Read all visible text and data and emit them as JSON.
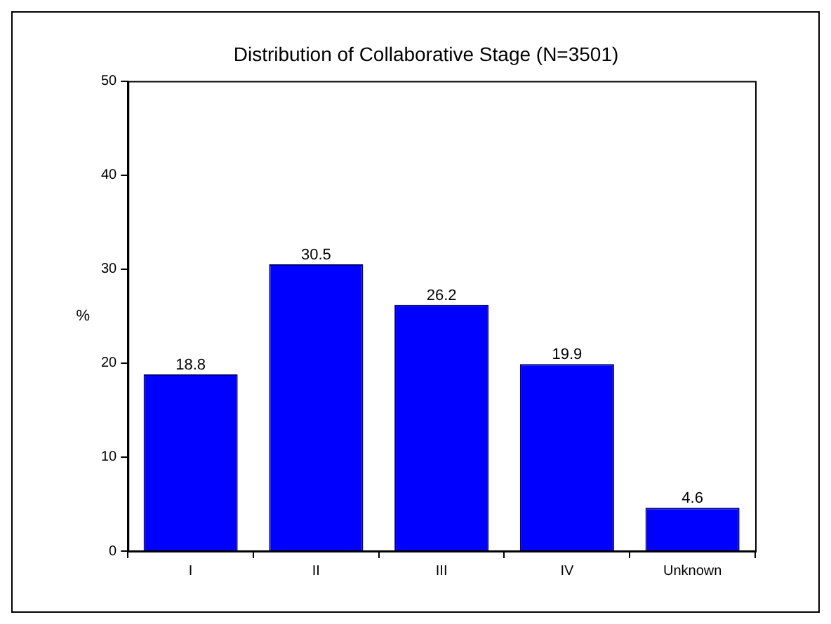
{
  "chart_data": {
    "type": "bar",
    "title": "Distribution of Collaborative Stage (N=3501)",
    "ylabel": "%",
    "categories": [
      "I",
      "II",
      "III",
      "IV",
      "Unknown"
    ],
    "values": [
      18.8,
      30.5,
      26.2,
      19.9,
      4.6
    ],
    "color": "#0000ff",
    "ylim": [
      0,
      50
    ],
    "yticks": [
      0,
      10,
      20,
      30,
      40,
      50
    ],
    "grid": false,
    "legend": false,
    "data_labels": true
  }
}
